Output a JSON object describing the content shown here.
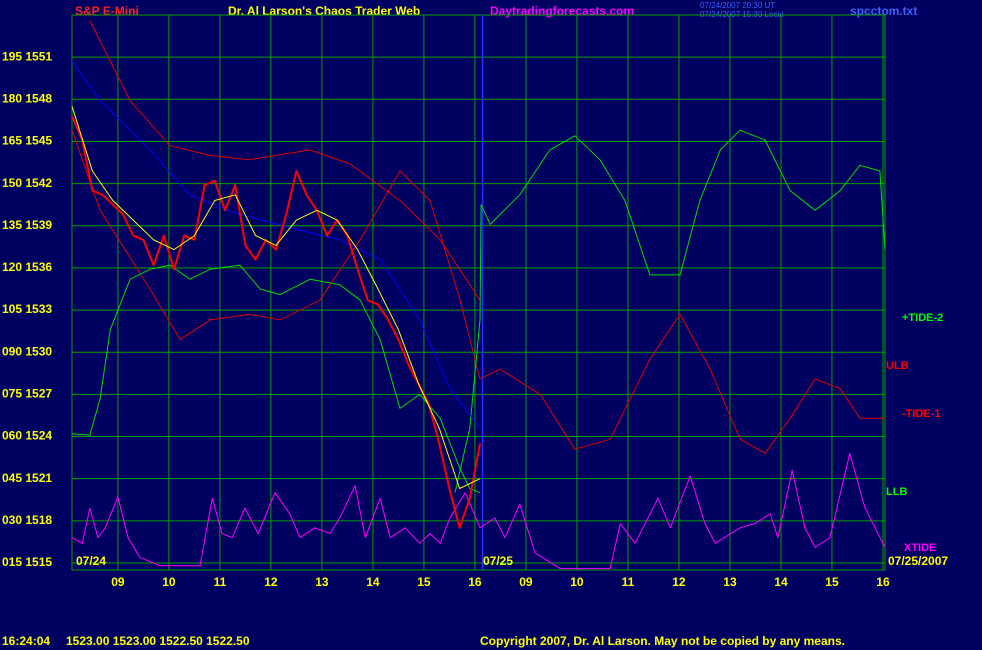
{
  "chart_data": {
    "type": "line",
    "title": "Dr. Al Larson's Chaos Trader Web",
    "symbol": "S&P E-Mini",
    "site": "Daytradingforecasts.com",
    "time_ut": "07/24/2007 20:30 UT",
    "time_local": "07/24/2007 15:30 Local",
    "file": "spcctom.txt",
    "date_labels": [
      "07/24",
      "07/25",
      "07/25/2007"
    ],
    "clock": "16:24:04",
    "quote": "1523.00 1523.00 1522.50 1522.50",
    "copyright": "Copyright 2007, Dr. Al Larson. May not be copied by any means.",
    "line_labels": [
      {
        "text": "+TIDE-2",
        "color": "#00ff00"
      },
      {
        "text": "ULB",
        "color": "#ff0000"
      },
      {
        "text": "-TIDE-1",
        "color": "#ff0000"
      },
      {
        "text": "LLB",
        "color": "#00ff00"
      },
      {
        "text": "XTIDE",
        "color": "#ff00ff"
      }
    ],
    "grid": true,
    "grid_color": "#00a000",
    "session_break": 8.05,
    "xlim": [
      0,
      15.94
    ],
    "xticks": [
      {
        "value": 0.9,
        "label": "09"
      },
      {
        "value": 1.9,
        "label": "10"
      },
      {
        "value": 2.9,
        "label": "11"
      },
      {
        "value": 3.9,
        "label": "12"
      },
      {
        "value": 4.9,
        "label": "13"
      },
      {
        "value": 5.9,
        "label": "14"
      },
      {
        "value": 6.9,
        "label": "15"
      },
      {
        "value": 7.9,
        "label": "16"
      },
      {
        "value": 8.9,
        "label": "09"
      },
      {
        "value": 9.9,
        "label": "10"
      },
      {
        "value": 10.9,
        "label": "11"
      },
      {
        "value": 11.9,
        "label": "12"
      },
      {
        "value": 12.9,
        "label": "13"
      },
      {
        "value": 13.9,
        "label": "14"
      },
      {
        "value": 14.9,
        "label": "15"
      },
      {
        "value": 15.9,
        "label": "16"
      }
    ],
    "ylim": [
      1514.5,
      1554
    ],
    "yticks": [
      {
        "value": 1551,
        "label": "195 1551"
      },
      {
        "value": 1548,
        "label": "180 1548"
      },
      {
        "value": 1545,
        "label": "165 1545"
      },
      {
        "value": 1542,
        "label": "150 1542"
      },
      {
        "value": 1539,
        "label": "135 1539"
      },
      {
        "value": 1536,
        "label": "120 1536"
      },
      {
        "value": 1533,
        "label": "105 1533"
      },
      {
        "value": 1530,
        "label": "090 1530"
      },
      {
        "value": 1527,
        "label": "075 1527"
      },
      {
        "value": 1524,
        "label": "060 1524"
      },
      {
        "value": 1521,
        "label": "045 1521"
      },
      {
        "value": 1518,
        "label": "030 1518"
      },
      {
        "value": 1515,
        "label": "015 1515"
      }
    ],
    "series": [
      {
        "color": "#ff00ff",
        "width": 1,
        "x": [
          0,
          0.2,
          0.35,
          0.51,
          0.65,
          0.9,
          1.1,
          1.33,
          1.73,
          2.51,
          2.75,
          2.94,
          3.14,
          3.39,
          3.65,
          3.98,
          4.27,
          4.47,
          4.76,
          5.06,
          5.25,
          5.55,
          5.75,
          6.04,
          6.24,
          6.53,
          6.82,
          7.02,
          7.22,
          7.41,
          7.71,
          8.0,
          8.29,
          8.49,
          8.78,
          9.08,
          9.57,
          10.55,
          10.75,
          11.04,
          11.49,
          11.73,
          12.12,
          12.41,
          12.61,
          13.1,
          13.39,
          13.69,
          13.84,
          14.12,
          14.37,
          14.57,
          14.86,
          15.25,
          15.55,
          15.94
        ],
        "values": [
          1516.8,
          1516.4,
          1518.9,
          1516.8,
          1517.5,
          1519.7,
          1516.8,
          1515.4,
          1514.8,
          1514.8,
          1519.6,
          1517.1,
          1516.8,
          1518.9,
          1517.1,
          1520.0,
          1518.5,
          1516.8,
          1517.5,
          1517.1,
          1518.2,
          1520.5,
          1516.8,
          1519.6,
          1516.8,
          1517.5,
          1516.4,
          1517.1,
          1516.4,
          1518.2,
          1520.0,
          1517.5,
          1518.2,
          1516.8,
          1519.2,
          1515.7,
          1514.6,
          1514.6,
          1517.8,
          1516.4,
          1519.6,
          1517.5,
          1521.2,
          1517.8,
          1516.4,
          1517.5,
          1517.8,
          1518.5,
          1516.8,
          1521.6,
          1517.5,
          1516.1,
          1516.8,
          1522.8,
          1518.9,
          1516.1
        ]
      },
      {
        "color": "#dd0000",
        "width": 1,
        "x": [
          0.35,
          0.75,
          1.14,
          1.92,
          2.71,
          3.49,
          4.67,
          5.45,
          6.43,
          7.22,
          8.0
        ],
        "values": [
          1553.6,
          1550.7,
          1547.9,
          1544.7,
          1544.0,
          1543.7,
          1544.4,
          1543.4,
          1540.8,
          1538.0,
          1533.7
        ]
      },
      {
        "color": "#dd0000",
        "width": 1,
        "x": [
          0,
          0.55,
          1.53,
          2.12,
          2.71,
          3.49,
          4.08,
          4.86,
          5.65,
          6.43,
          7.02,
          7.61,
          8.0,
          8.39,
          9.18,
          9.86,
          10.55,
          11.33,
          11.92,
          12.51,
          13.1,
          13.59,
          14.08,
          14.57,
          15.06,
          15.45,
          15.94
        ],
        "values": [
          1545.8,
          1540.1,
          1534.5,
          1530.9,
          1532.3,
          1532.7,
          1532.3,
          1533.7,
          1538.0,
          1542.9,
          1540.8,
          1533.7,
          1528.1,
          1528.8,
          1527.0,
          1523.1,
          1523.8,
          1529.5,
          1532.7,
          1528.8,
          1523.8,
          1522.8,
          1525.3,
          1528.1,
          1527.4,
          1525.3,
          1525.3
        ]
      },
      {
        "color": "#00dd00",
        "width": 1,
        "x": [
          0,
          0.35,
          0.55,
          0.75,
          1.14,
          1.53,
          1.92,
          2.31,
          2.71,
          3.29,
          3.69,
          4.08,
          4.67,
          5.25,
          5.65,
          6.04,
          6.43,
          6.82,
          7.22,
          7.61,
          7.8,
          8.0
        ],
        "values": [
          1524.2,
          1524.1,
          1526.7,
          1531.6,
          1535.2,
          1535.9,
          1536.2,
          1535.2,
          1535.9,
          1536.2,
          1534.5,
          1534.1,
          1535.2,
          1534.8,
          1533.7,
          1530.9,
          1526.0,
          1527.0,
          1525.3,
          1521.7,
          1520.3,
          1520.0
        ]
      },
      {
        "color": "#00dd00",
        "width": 1,
        "x": [
          7.51,
          7.8,
          8.0,
          8.02,
          8.2,
          8.78,
          9.37,
          9.86,
          10.35,
          10.84,
          11.33,
          11.92,
          12.31,
          12.71,
          13.1,
          13.59,
          14.08,
          14.57,
          15.06,
          15.45,
          15.84,
          15.94
        ],
        "values": [
          1520.0,
          1524.6,
          1532.3,
          1540.5,
          1539.1,
          1541.2,
          1544.4,
          1545.4,
          1543.7,
          1540.8,
          1535.5,
          1535.5,
          1540.8,
          1544.4,
          1545.8,
          1545.1,
          1541.5,
          1540.1,
          1541.5,
          1543.3,
          1542.9,
          1537.3
        ]
      },
      {
        "color": "#0000ff",
        "width": 1,
        "x": [
          0,
          0.55,
          1.53,
          2.31,
          3.29,
          4.47,
          5.25,
          6.04,
          6.82,
          7.41,
          8.0
        ],
        "values": [
          1550.7,
          1547.9,
          1544.4,
          1541.2,
          1539.8,
          1538.7,
          1538.0,
          1536.6,
          1532.3,
          1527.4,
          1524.6
        ]
      },
      {
        "color": "#ff0000",
        "width": 2,
        "x": [
          0,
          0.2,
          0.4,
          0.6,
          0.8,
          1.0,
          1.2,
          1.4,
          1.6,
          1.8,
          2.0,
          2.2,
          2.4,
          2.6,
          2.8,
          3.0,
          3.2,
          3.4,
          3.6,
          3.8,
          4.0,
          4.2,
          4.4,
          4.6,
          4.8,
          5.0,
          5.2,
          5.4,
          5.6,
          5.8,
          6.0,
          6.2,
          6.4,
          6.6,
          6.8,
          7.0,
          7.2,
          7.4,
          7.6,
          7.8,
          8.0
        ],
        "values": [
          1546.8,
          1545.1,
          1541.5,
          1541.2,
          1540.5,
          1539.8,
          1538.3,
          1538.0,
          1536.2,
          1538.3,
          1535.9,
          1538.3,
          1538.0,
          1541.9,
          1542.2,
          1540.1,
          1541.9,
          1537.6,
          1536.6,
          1538.0,
          1537.3,
          1539.8,
          1542.9,
          1541.2,
          1540.1,
          1538.3,
          1539.4,
          1538.3,
          1535.9,
          1533.7,
          1533.4,
          1532.3,
          1530.9,
          1529.1,
          1527.7,
          1526.3,
          1523.5,
          1520.3,
          1517.5,
          1519.6,
          1523.5
        ]
      },
      {
        "color": "#ffff00",
        "width": 1,
        "x": [
          0,
          0.4,
          0.8,
          1.2,
          1.6,
          2.0,
          2.4,
          2.8,
          3.2,
          3.6,
          4.0,
          4.4,
          4.8,
          5.2,
          5.6,
          6.0,
          6.4,
          6.8,
          7.2,
          7.6,
          8.0
        ],
        "values": [
          1547.5,
          1542.9,
          1540.8,
          1539.4,
          1538.0,
          1537.3,
          1538.3,
          1540.8,
          1541.2,
          1538.3,
          1537.6,
          1539.4,
          1540.1,
          1539.4,
          1537.3,
          1534.5,
          1531.6,
          1527.7,
          1524.6,
          1520.3,
          1521.0
        ]
      }
    ]
  }
}
